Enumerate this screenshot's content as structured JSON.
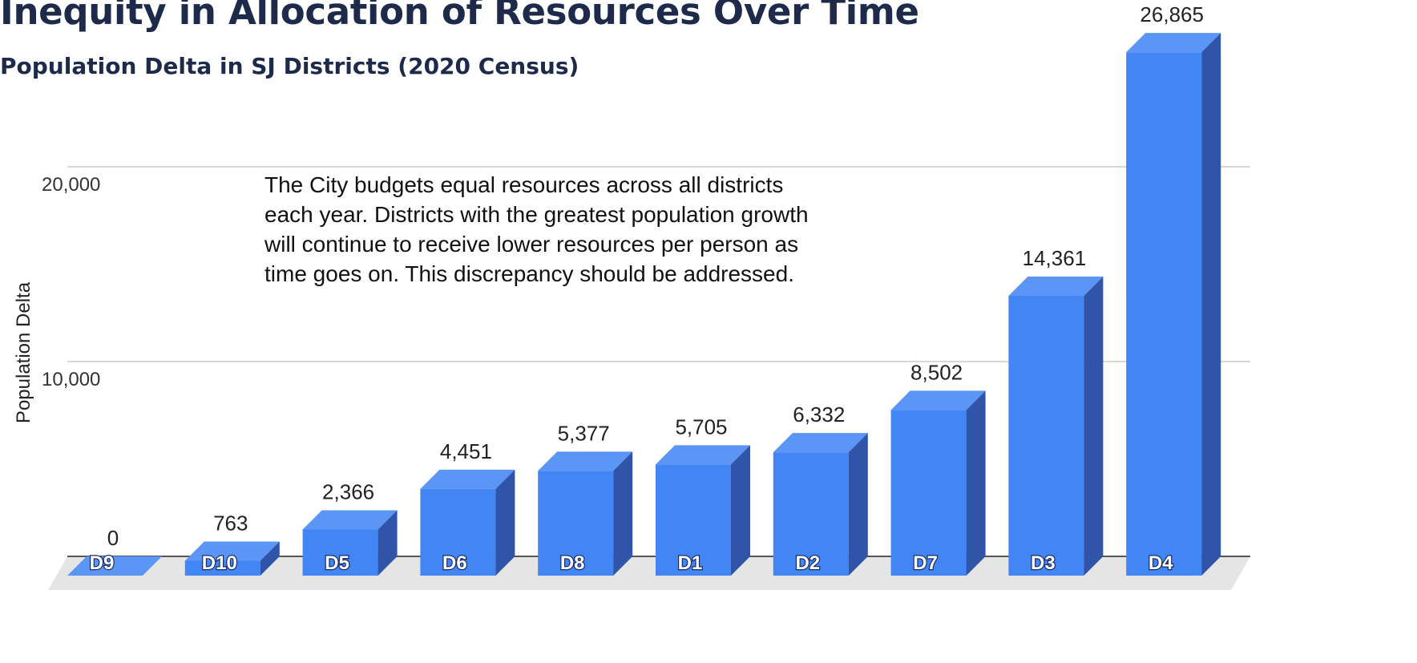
{
  "header": {
    "title": "Inequity in Allocation of Resources Over Time",
    "subtitle": "Population Delta in SJ Districts (2020 Census)"
  },
  "note": "The City budgets equal resources across all districts each year.  Districts with the greatest population growth will continue to receive lower resources per person as time goes on.  This discrepancy should be addressed.",
  "chart_data": {
    "type": "bar",
    "style": "3d",
    "title": "Population Delta in SJ Districts (2020 Census)",
    "xlabel": "",
    "ylabel": "Population Delta",
    "categories": [
      "D9",
      "D10",
      "D5",
      "D6",
      "D8",
      "D1",
      "D2",
      "D7",
      "D3",
      "D4"
    ],
    "values": [
      0,
      763,
      2366,
      4451,
      5377,
      5705,
      6332,
      8502,
      14361,
      26865
    ],
    "data_labels": [
      "0",
      "763",
      "2,366",
      "4,451",
      "5,377",
      "5,705",
      "6,332",
      "8,502",
      "14,361",
      "26,865"
    ],
    "yticks": [
      10000,
      20000
    ],
    "ytick_labels": [
      "10,000",
      "20,000"
    ],
    "ylim": [
      0,
      26865
    ],
    "grid": true,
    "legend": "none",
    "colors": {
      "front": "#4285f4",
      "top": "#5b95f6",
      "side": "#2f54a8",
      "floor": "#e5e5e5",
      "gridline": "#cccccc"
    }
  }
}
